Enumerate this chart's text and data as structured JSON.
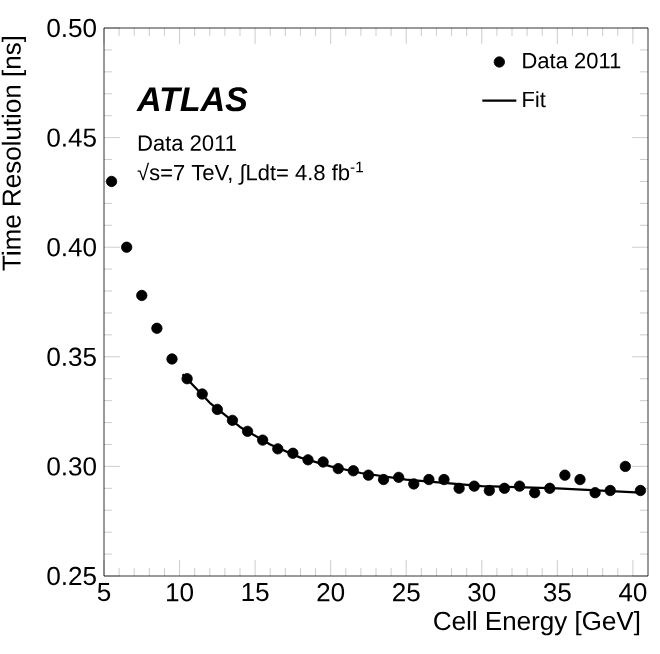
{
  "chart_data": {
    "type": "scatter",
    "xlabel": "Cell Energy [GeV]",
    "ylabel": "Time Resolution [ns]",
    "xlim": [
      5,
      41
    ],
    "ylim": [
      0.25,
      0.5
    ],
    "xticks": [
      5,
      10,
      15,
      20,
      25,
      30,
      35,
      40
    ],
    "yticks": [
      {
        "value": 0.25,
        "label": "0.25"
      },
      {
        "value": 0.3,
        "label": "0.30"
      },
      {
        "value": 0.35,
        "label": "0.35"
      },
      {
        "value": 0.4,
        "label": "0.40"
      },
      {
        "value": 0.45,
        "label": "0.45"
      },
      {
        "value": 0.5,
        "label": "0.50"
      }
    ],
    "grid": false,
    "legend": "top right",
    "annotations": [
      "ATLAS",
      "Data 2011",
      "√s=7 TeV, ∫Ldt= 4.8 fb$^{-1}$"
    ],
    "series": [
      {
        "name": "Data 2011",
        "marker": "circle",
        "color": "#000000",
        "x": [
          5.5,
          6.5,
          7.5,
          8.5,
          9.5,
          10.5,
          11.5,
          12.5,
          13.5,
          14.5,
          15.5,
          16.5,
          17.5,
          18.5,
          19.5,
          20.5,
          21.5,
          22.5,
          23.5,
          24.5,
          25.5,
          26.5,
          27.5,
          28.5,
          29.5,
          30.5,
          31.5,
          32.5,
          33.5,
          34.5,
          35.5,
          36.5,
          37.5,
          38.5,
          39.5,
          40.5
        ],
        "values": [
          0.43,
          0.4,
          0.378,
          0.363,
          0.349,
          0.34,
          0.333,
          0.326,
          0.321,
          0.316,
          0.312,
          0.308,
          0.306,
          0.303,
          0.302,
          0.299,
          0.298,
          0.296,
          0.294,
          0.295,
          0.292,
          0.294,
          0.294,
          0.29,
          0.291,
          0.289,
          0.29,
          0.291,
          0.288,
          0.29,
          0.296,
          0.294,
          0.288,
          0.289,
          0.3,
          0.289
        ]
      },
      {
        "name": "Fit",
        "type": "line",
        "marker": "none",
        "line_style": "solid",
        "color": "#000000",
        "x": [
          10.2,
          12,
          14,
          16,
          18,
          20,
          22,
          25,
          30,
          35,
          40.5
        ],
        "values": [
          0.342,
          0.329,
          0.318,
          0.31,
          0.304,
          0.3,
          0.297,
          0.294,
          0.291,
          0.29,
          0.288
        ]
      }
    ]
  }
}
